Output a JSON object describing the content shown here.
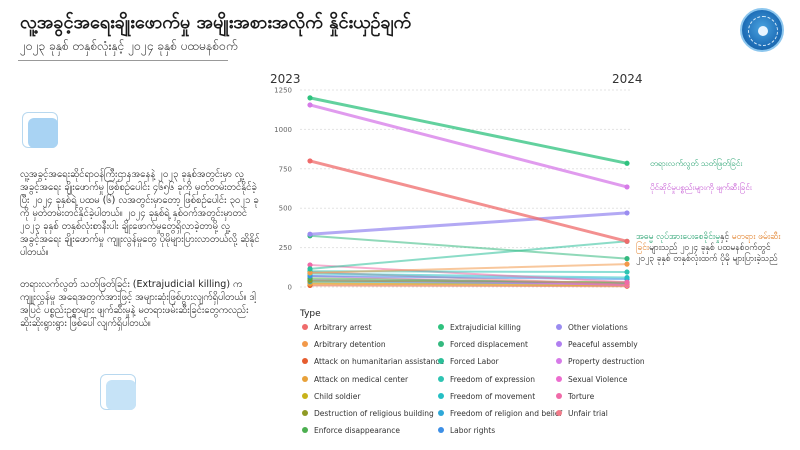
{
  "header": {
    "title": "လူ့အခွင့်အရေးချိုးဖောက်မှု အမျိုးအစားအလိုက် နှိုင်းယှဉ်ချက်",
    "subtitle": "၂၀၂၃ ခုနှစ် တနှစ်လုံးနှင့် ၂၀၂၄ ခုနှစ် ပထမနစ်ဝက်",
    "logo_icon": "organization-seal-icon"
  },
  "body_text": {
    "paragraph1": "လူ့အခွင့်အရေးဆိုင်ရာဝန်ကြီးဌာနအနေနဲ့ ၂၀၂၃ ခုနှစ်အတွင်းမှာ လူ့အခွင့်အရေး ချိုးဖောက်မှု ဖြစ်စဉ်ပေါင်း ၄၆၅၆ ခုကို မှတ်တမ်းတင်နိုင်ခဲ့ပြီး ၂၀၂၄ ခုနှစ်ရဲ့ ပထမ (၆) လအတွင်းမှာတော့ ဖြစ်စဉ်ပေါင်း ၃၀၂၁ ခုကို မှတ်တမ်းတင်နိုင်ခဲ့ပါတယ်။ ၂၀၂၄ ခုနှစ်ရဲ့ နှစ်ဝက်အတွင်းမှာတင် ၂၀၂၃ ခုနှစ် တနှစ်လုံးစာနီးပါး ချိုးဖောက်မှုတွေရှိလာခဲ့တာမို့ လူ့အခွင့်အရေး ချိုးဖောက်မှု ကျူးလွန်မှုတွေ ပိုမိုများပြားလာတယ်လို့ ဆိုနိုင်ပါတယ်။",
    "paragraph2": "တရားလက်လွတ် သတ်ဖြတ်ခြင်း (Extrajudicial killing) က ကျူးလွန်မှု အရေအတွက်အားဖြင့် အများဆုံးဖြစ်ပွားလျက်ရှိပါတယ်။ ဒါ့အပြင် ပစ္စည်းဥစ္စာများ ဖျက်ဆီးမှုနဲ့ မတရားဖမ်းဆီးခြင်းတွေကလည်း ဆိုးဆိုးရွားရွား ဖြစ်ပေါ်လျက်ရှိပါတယ်။"
  },
  "annotations": {
    "extrajudicial": "တရားလက်လွတ် သတ်ဖြတ်ခြင်း",
    "property": "ပိုင်ဆိုင်မှုပစ္စည်းများကို ဖျက်ဆီးခြင်း",
    "note_part1": "အဓမ္မ လုပ်အားပေးစေခိုင်းမှု",
    "note_part2": "နှင့်",
    "note_part3": "မတရား ဖမ်းဆီးခြင်း",
    "note_part4": "များသည် ၂၀၂၄ ခုနှစ် ပထမနစ်ဝက်တွင် ၂၀၂၃ ခုနှစ် တနှစ်လုံးထက် ပိုမို များပြားခဲ့သည်"
  },
  "colors": {
    "extrajudicial_label": "#1e9e6a",
    "property_label": "#c04ad0",
    "forced_labor_label": "#1e9e6a",
    "arbitrary_detention_label": "#e07a1f"
  },
  "legend": {
    "title": "Type",
    "items": [
      {
        "label": "Arbitrary arrest",
        "color": "#ef6b6b"
      },
      {
        "label": "Arbitrary detention",
        "color": "#f2994a"
      },
      {
        "label": "Attack on humanitarian assistance",
        "color": "#e65c2e"
      },
      {
        "label": "Attack on medical center",
        "color": "#e8a13a"
      },
      {
        "label": "Child soldier",
        "color": "#c8b21a"
      },
      {
        "label": "Destruction of religious building",
        "color": "#8f9a24"
      },
      {
        "label": "Enforce disappearance",
        "color": "#4caf50"
      },
      {
        "label": "Extrajudicial killing",
        "color": "#2ec27e"
      },
      {
        "label": "Forced displacement",
        "color": "#34b97f"
      },
      {
        "label": "Forced Labor",
        "color": "#2bbf99"
      },
      {
        "label": "Freedom of expression",
        "color": "#2ec4b2"
      },
      {
        "label": "Freedom of movement",
        "color": "#25bfc4"
      },
      {
        "label": "Freedom of religion and belief",
        "color": "#2ea8d8"
      },
      {
        "label": "Labor rights",
        "color": "#3d8fe6"
      },
      {
        "label": "Other violations",
        "color": "#9a8cf0"
      },
      {
        "label": "Peaceful assembly",
        "color": "#b07ff0"
      },
      {
        "label": "Property destruction",
        "color": "#d67ae8"
      },
      {
        "label": "Sexual Violence",
        "color": "#ec6ccf"
      },
      {
        "label": "Torture",
        "color": "#f06aa8"
      },
      {
        "label": "Unfair trial",
        "color": "#f27b8a"
      }
    ]
  },
  "chart_data": {
    "type": "line",
    "x": [
      "2023",
      "2024"
    ],
    "ylim": [
      0,
      1250
    ],
    "yticks": [
      0,
      250,
      500,
      750,
      1000,
      1250
    ],
    "grid": true,
    "legend_placement": "bottom",
    "series": [
      {
        "name": "Extrajudicial killing",
        "values": [
          1200,
          785
        ]
      },
      {
        "name": "Property destruction",
        "values": [
          1155,
          635
        ]
      },
      {
        "name": "Arbitrary arrest",
        "values": [
          800,
          290
        ]
      },
      {
        "name": "Other violations",
        "values": [
          335,
          470
        ]
      },
      {
        "name": "Forced displacement",
        "values": [
          325,
          180
        ]
      },
      {
        "name": "Forced Labor",
        "values": [
          115,
          290
        ]
      },
      {
        "name": "Arbitrary detention",
        "values": [
          90,
          145
        ]
      },
      {
        "name": "Torture",
        "values": [
          140,
          30
        ]
      },
      {
        "name": "Unfair trial",
        "values": [
          95,
          15
        ]
      },
      {
        "name": "Sexual Violence",
        "values": [
          70,
          10
        ]
      },
      {
        "name": "Freedom of expression",
        "values": [
          100,
          95
        ]
      },
      {
        "name": "Freedom of movement",
        "values": [
          85,
          60
        ]
      },
      {
        "name": "Labor rights",
        "values": [
          70,
          50
        ]
      },
      {
        "name": "Freedom of religion and belief",
        "values": [
          35,
          20
        ]
      },
      {
        "name": "Peaceful assembly",
        "values": [
          45,
          15
        ]
      },
      {
        "name": "Enforce disappearance",
        "values": [
          55,
          25
        ]
      },
      {
        "name": "Destruction of religious building",
        "values": [
          40,
          30
        ]
      },
      {
        "name": "Child soldier",
        "values": [
          25,
          10
        ]
      },
      {
        "name": "Attack on medical center",
        "values": [
          20,
          15
        ]
      },
      {
        "name": "Attack on humanitarian assistance",
        "values": [
          10,
          5
        ]
      }
    ]
  }
}
